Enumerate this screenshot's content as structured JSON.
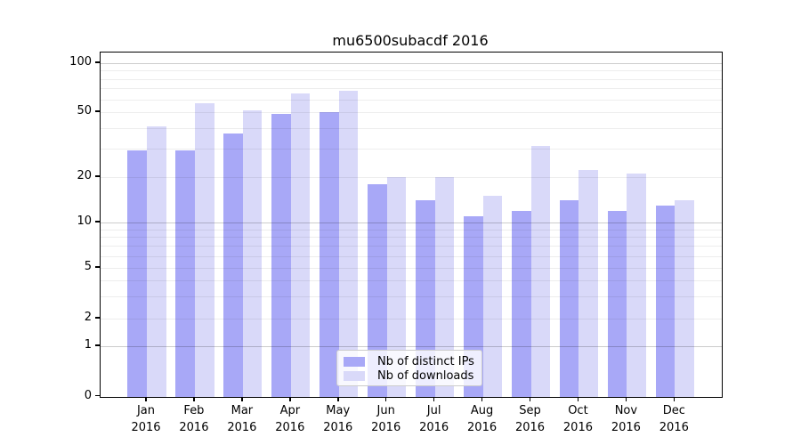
{
  "title": "mu6500subacdf 2016",
  "chart_data": {
    "type": "bar",
    "title": "mu6500subacdf 2016",
    "xlabel": "",
    "ylabel": "",
    "x": {
      "months": [
        "Jan",
        "Feb",
        "Mar",
        "Apr",
        "May",
        "Jun",
        "Jul",
        "Aug",
        "Sep",
        "Oct",
        "Nov",
        "Dec"
      ],
      "year": "2016"
    },
    "categories": [
      "Jan 2016",
      "Feb 2016",
      "Mar 2016",
      "Apr 2016",
      "May 2016",
      "Jun 2016",
      "Jul 2016",
      "Aug 2016",
      "Sep 2016",
      "Oct 2016",
      "Nov 2016",
      "Dec 2016"
    ],
    "series": [
      {
        "name": "Nb of distinct IPs",
        "color": "#a8a8f7",
        "values": [
          29,
          29,
          37,
          49,
          50,
          18,
          14,
          11,
          12,
          14,
          12,
          13
        ]
      },
      {
        "name": "Nb of downloads",
        "color": "#d9d9f9",
        "values": [
          41,
          57,
          51,
          65,
          68,
          20,
          20,
          15,
          31,
          22,
          21,
          14
        ]
      }
    ],
    "y_axis": {
      "scale": "symlog",
      "ticks": [
        0,
        1,
        2,
        5,
        10,
        20,
        50,
        100
      ],
      "major_grid": [
        1,
        10,
        100
      ],
      "minor_grid": [
        2,
        3,
        4,
        5,
        6,
        7,
        8,
        9,
        20,
        30,
        40,
        50,
        60,
        70,
        80,
        90
      ]
    },
    "legend": {
      "position": "lower center",
      "entries": [
        "Nb of distinct IPs",
        "Nb of downloads"
      ]
    },
    "grid": "on, drawn over bars",
    "colors": {
      "axis": "#000000",
      "grid_major": "#cccccc",
      "grid_minor": "#ededed",
      "background": "#ffffff"
    }
  }
}
